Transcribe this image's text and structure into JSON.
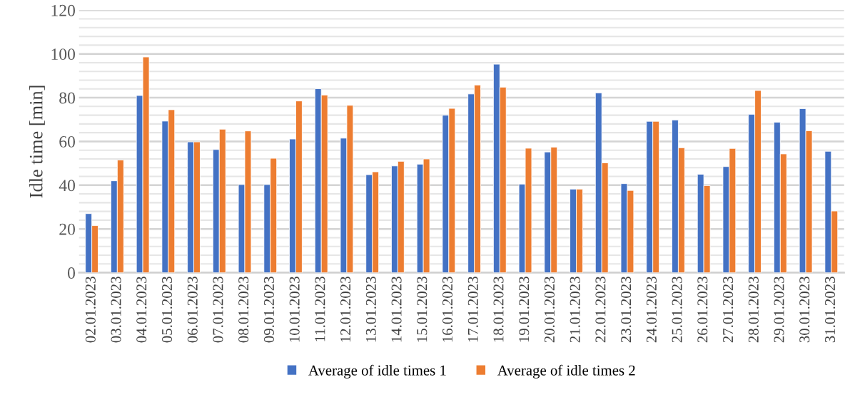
{
  "chart_data": {
    "type": "bar",
    "ylabel": "Idle time [min]",
    "categories": [
      "02.01.2023",
      "03.01.2023",
      "04.01.2023",
      "05.01.2023",
      "06.01.2023",
      "07.01.2023",
      "08.01.2023",
      "09.01.2023",
      "10.01.2023",
      "11.01.2023",
      "12.01.2023",
      "13.01.2023",
      "14.01.2023",
      "15.01.2023",
      "16.01.2023",
      "17.01.2023",
      "18.01.2023",
      "19.01.2023",
      "20.01.2023",
      "21.01.2023",
      "22.01.2023",
      "23.01.2023",
      "24.01.2023",
      "25.01.2023",
      "26.01.2023",
      "27.01.2023",
      "28.01.2023",
      "29.01.2023",
      "30.01.2023",
      "31.01.2023"
    ],
    "series": [
      {
        "name": "Average of idle times 1",
        "color": "#4472c4",
        "values": [
          27,
          42,
          81,
          69.3,
          59.8,
          56.3,
          40.3,
          40.3,
          61.1,
          84.1,
          61.5,
          44.8,
          48.8,
          49.6,
          72,
          81.7,
          95.3,
          40.5,
          55.2,
          38.2,
          82.2,
          40.7,
          69.2,
          69.8,
          45,
          48.5,
          72.4,
          68.8,
          75,
          55.5
        ]
      },
      {
        "name": "Average of idle times 2",
        "color": "#ed7d31",
        "values": [
          21.5,
          51.5,
          98.6,
          74.5,
          59.8,
          65.6,
          64.8,
          52.3,
          78.5,
          81.2,
          76.5,
          46.1,
          50.9,
          52,
          75.1,
          85.8,
          84.8,
          56.9,
          57.4,
          38.2,
          50.2,
          37.6,
          69.2,
          57.1,
          39.8,
          56.8,
          83.3,
          54.3,
          64.9,
          28.2
        ]
      }
    ],
    "ylim": [
      0,
      120
    ],
    "yticks": [
      0,
      {
        "value": 4,
        "label": null
      },
      {
        "value": 8,
        "label": null
      },
      {
        "value": 12,
        "label": null
      },
      {
        "value": 16,
        "label": null
      },
      20,
      {
        "value": 24,
        "label": null
      },
      {
        "value": 28,
        "label": null
      },
      {
        "value": 32,
        "label": null
      },
      {
        "value": 36,
        "label": null
      },
      40,
      {
        "value": 44,
        "label": null
      },
      {
        "value": 48,
        "label": null
      },
      {
        "value": 52,
        "label": null
      },
      {
        "value": 56,
        "label": null
      },
      60,
      {
        "value": 64,
        "label": null
      },
      {
        "value": 68,
        "label": null
      },
      {
        "value": 72,
        "label": null
      },
      {
        "value": 76,
        "label": null
      },
      80,
      {
        "value": 84,
        "label": null
      },
      {
        "value": 88,
        "label": null
      },
      {
        "value": 92,
        "label": null
      },
      {
        "value": 96,
        "label": null
      },
      100,
      {
        "value": 104,
        "label": null
      },
      {
        "value": 108,
        "label": null
      },
      {
        "value": 112,
        "label": null
      },
      {
        "value": 116,
        "label": null
      },
      120
    ],
    "grid": "y",
    "legend": "bottom"
  }
}
